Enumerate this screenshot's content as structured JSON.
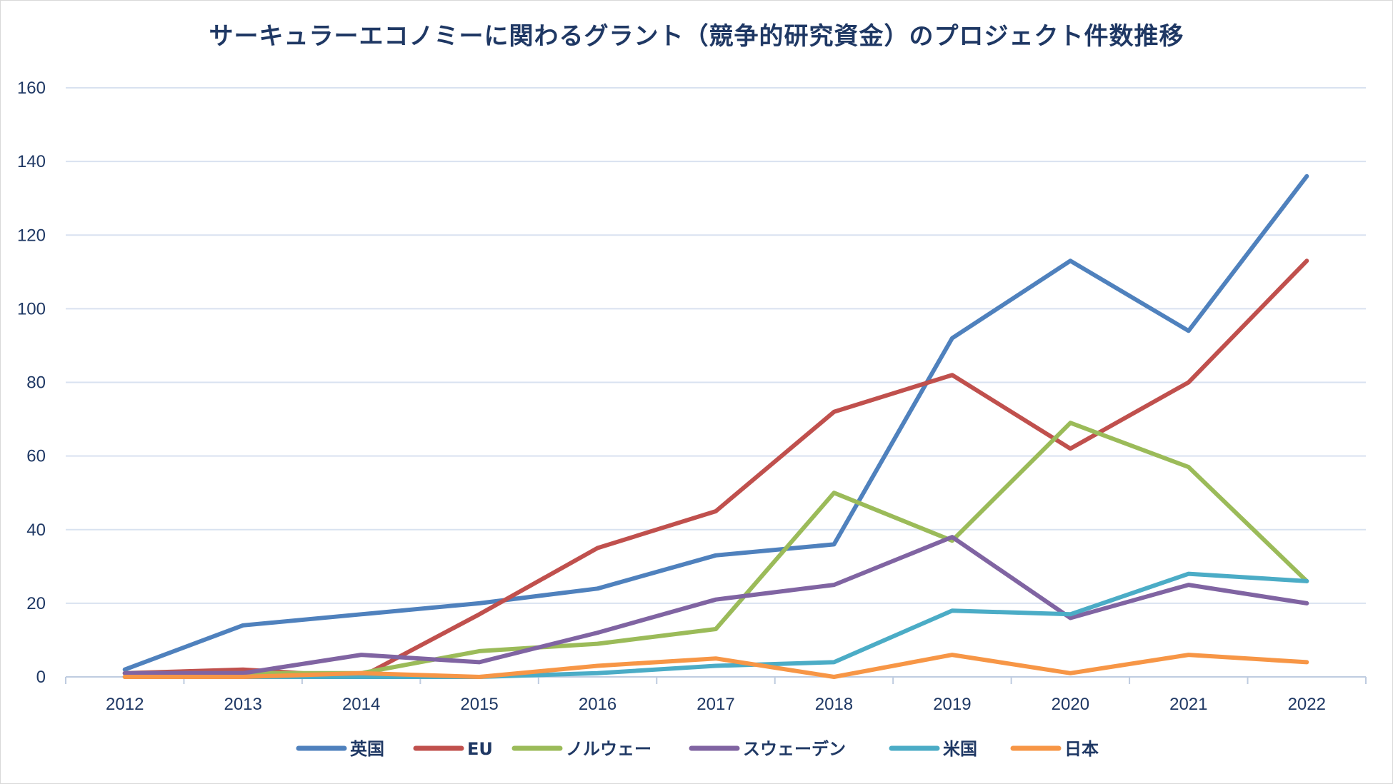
{
  "chart_data": {
    "type": "line",
    "title": "サーキュラーエコノミーに関わるグラント（競争的研究資金）のプロジェクト件数推移",
    "xlabel": "",
    "ylabel": "",
    "categories": [
      "2012",
      "2013",
      "2014",
      "2015",
      "2016",
      "2017",
      "2018",
      "2019",
      "2020",
      "2021",
      "2022"
    ],
    "ylim": [
      0,
      160
    ],
    "yticks": [
      0,
      20,
      40,
      60,
      80,
      100,
      120,
      140,
      160
    ],
    "ytick_labels": [
      "0",
      "20",
      "40",
      "60",
      "80",
      "100",
      "120",
      "140",
      "160"
    ],
    "grid": true,
    "legend_position": "bottom",
    "series": [
      {
        "name": "英国",
        "color": "#4F81BD",
        "values": [
          2,
          14,
          17,
          20,
          24,
          33,
          36,
          92,
          113,
          94,
          136
        ]
      },
      {
        "name": "EU",
        "color": "#C0504D",
        "values": [
          1,
          2,
          0,
          17,
          35,
          45,
          72,
          82,
          62,
          80,
          113
        ]
      },
      {
        "name": "ノルウェー",
        "color": "#9BBB59",
        "values": [
          1,
          1,
          1,
          7,
          9,
          13,
          50,
          37,
          69,
          57,
          26
        ]
      },
      {
        "name": "スウェーデン",
        "color": "#8064A2",
        "values": [
          1,
          1,
          6,
          4,
          12,
          21,
          25,
          38,
          16,
          25,
          20
        ]
      },
      {
        "name": "米国",
        "color": "#4BACC6",
        "values": [
          0,
          0,
          0,
          0,
          1,
          3,
          4,
          18,
          17,
          28,
          26
        ]
      },
      {
        "name": "日本",
        "color": "#F79646",
        "values": [
          0,
          0,
          1,
          0,
          3,
          5,
          0,
          6,
          1,
          6,
          4
        ]
      }
    ],
    "colors": {
      "title": "#1F3864",
      "axis_text": "#1F3864",
      "gridline": "#D9E2F0",
      "axis_line": "#BFCCE0"
    }
  }
}
